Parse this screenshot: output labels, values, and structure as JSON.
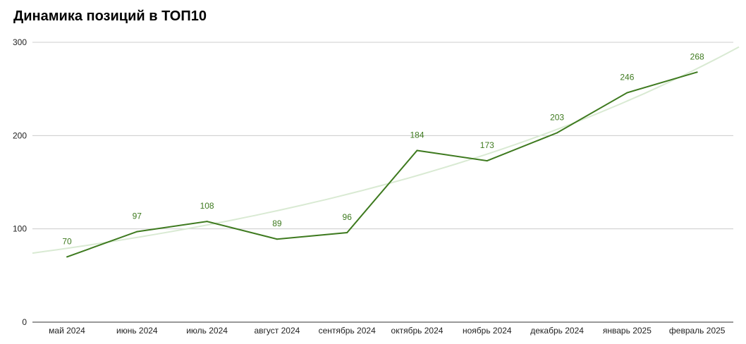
{
  "title": "Динамика позиций в ТОП10",
  "colors": {
    "series": "#3e7a1f",
    "trend": "#d9ead3",
    "grid": "#cccccc",
    "axis": "#333333"
  },
  "chart_data": {
    "type": "line",
    "title": "Динамика позиций в ТОП10",
    "xlabel": "",
    "ylabel": "",
    "categories": [
      "май 2024",
      "июнь 2024",
      "июль 2024",
      "август 2024",
      "сентябрь 2024",
      "октябрь 2024",
      "ноябрь 2024",
      "декабрь 2024",
      "январь 2025",
      "февраль 2025"
    ],
    "series": [
      {
        "values": [
          70,
          97,
          108,
          89,
          96,
          184,
          173,
          203,
          246,
          268
        ]
      }
    ],
    "trendline": {
      "type": "exponential",
      "start": 74,
      "end": 295
    },
    "yticks": [
      0,
      100,
      200,
      300
    ],
    "ylim": [
      0,
      300
    ],
    "grid": true,
    "legend": "none",
    "data_labels": true
  }
}
